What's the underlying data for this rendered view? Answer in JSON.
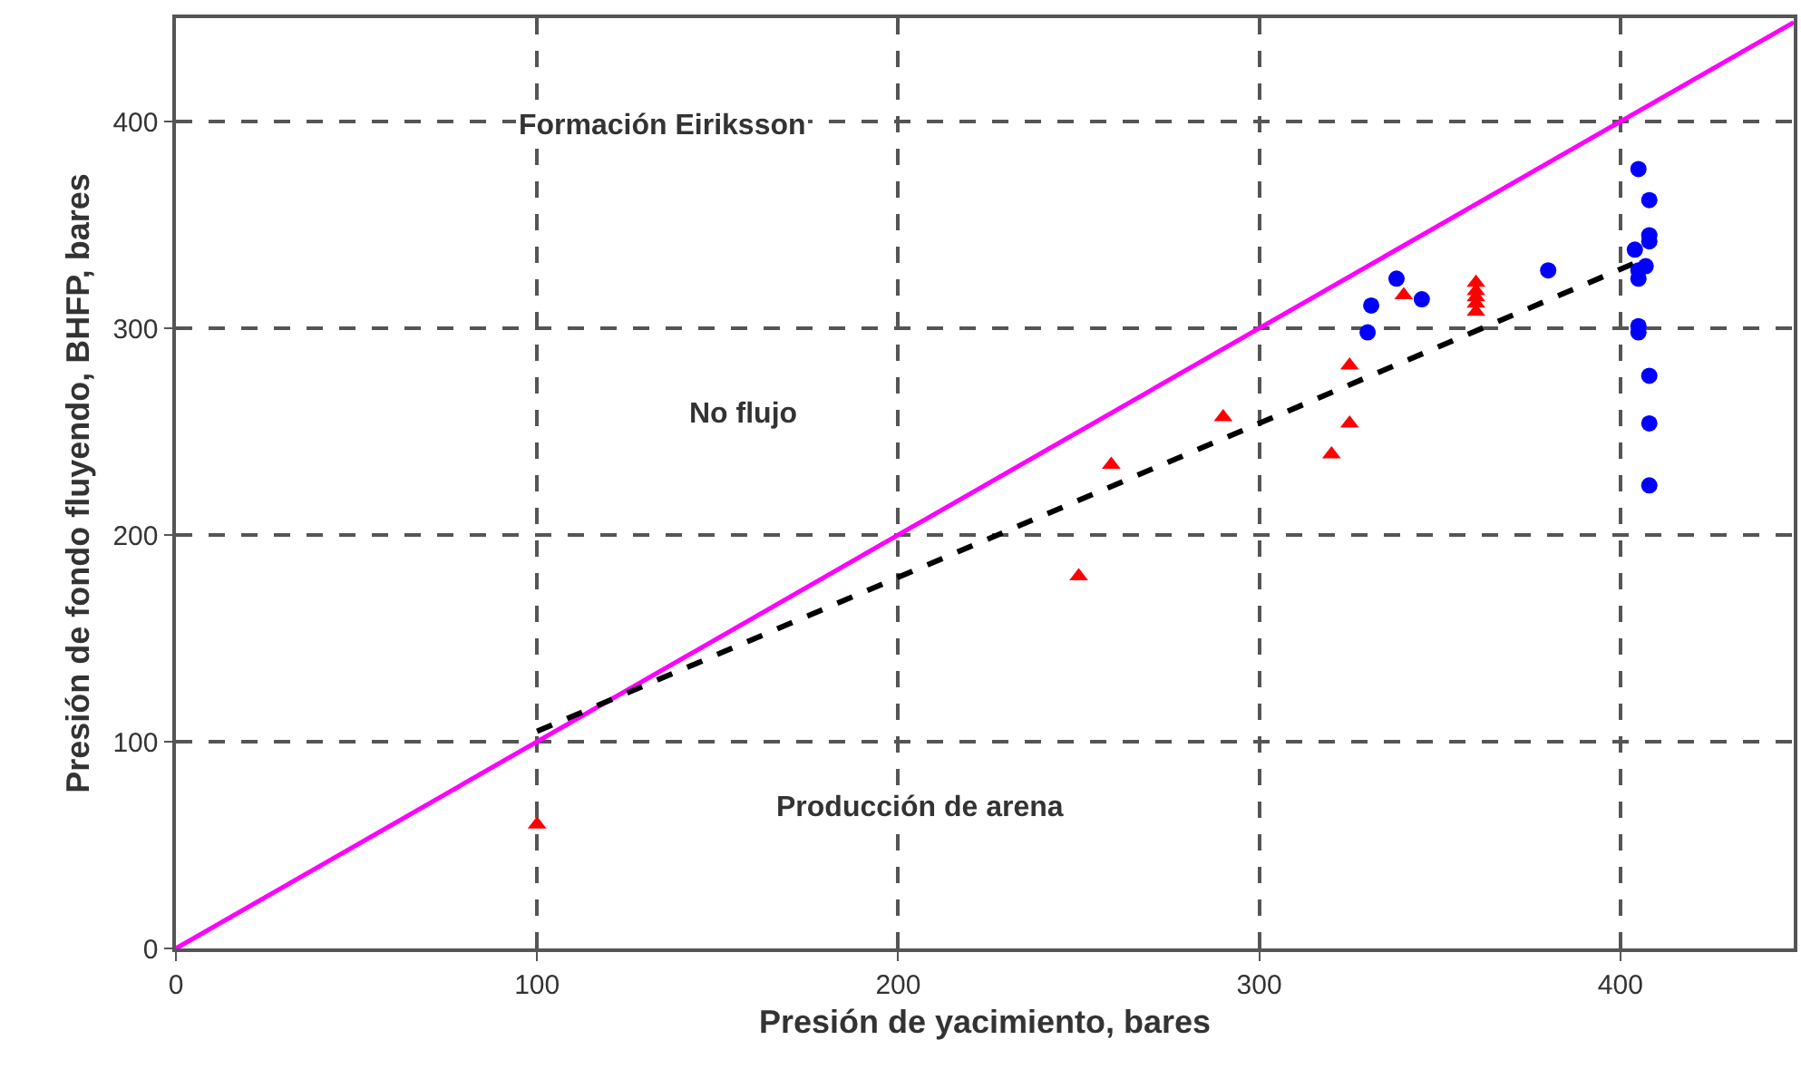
{
  "chart_data": {
    "type": "scatter",
    "xlabel": "Presión de yacimiento, bares",
    "ylabel": "Presión de fondo fluyendo, BHFP, bares",
    "xlim": [
      0,
      448
    ],
    "ylim": [
      0,
      450
    ],
    "xticks": [
      0,
      100,
      200,
      300,
      400
    ],
    "yticks": [
      0,
      100,
      200,
      300,
      400
    ],
    "grid": true,
    "annotations": [
      "Formación Eiriksson",
      "No flujo",
      "Producción de arena"
    ],
    "series": [
      {
        "type": "line",
        "color": "#ff00ff",
        "line_style": "solid",
        "marker": "none",
        "x": [
          0,
          448
        ],
        "values": [
          0,
          448
        ]
      },
      {
        "type": "line",
        "color": "#000000",
        "line_style": "dashed",
        "marker": "none",
        "x": [
          100,
          406
        ],
        "values": [
          105,
          333
        ]
      },
      {
        "color": "#ff0000",
        "marker": "triangle",
        "x": [
          100,
          250,
          259,
          290,
          320,
          325,
          325,
          340,
          360,
          360,
          360,
          360,
          360
        ],
        "values": [
          60,
          180,
          234,
          257,
          239,
          282,
          254,
          316,
          322,
          318,
          315,
          312,
          308
        ]
      },
      {
        "color": "#0000ff",
        "marker": "circle",
        "x": [
          330,
          331,
          338,
          345,
          380,
          405,
          408,
          408,
          408,
          404,
          407,
          405,
          405,
          405,
          405,
          408,
          408,
          408
        ],
        "values": [
          298,
          311,
          324,
          314,
          328,
          377,
          362,
          345,
          342,
          338,
          330,
          324,
          328,
          301,
          298,
          277,
          254,
          224
        ]
      }
    ]
  }
}
